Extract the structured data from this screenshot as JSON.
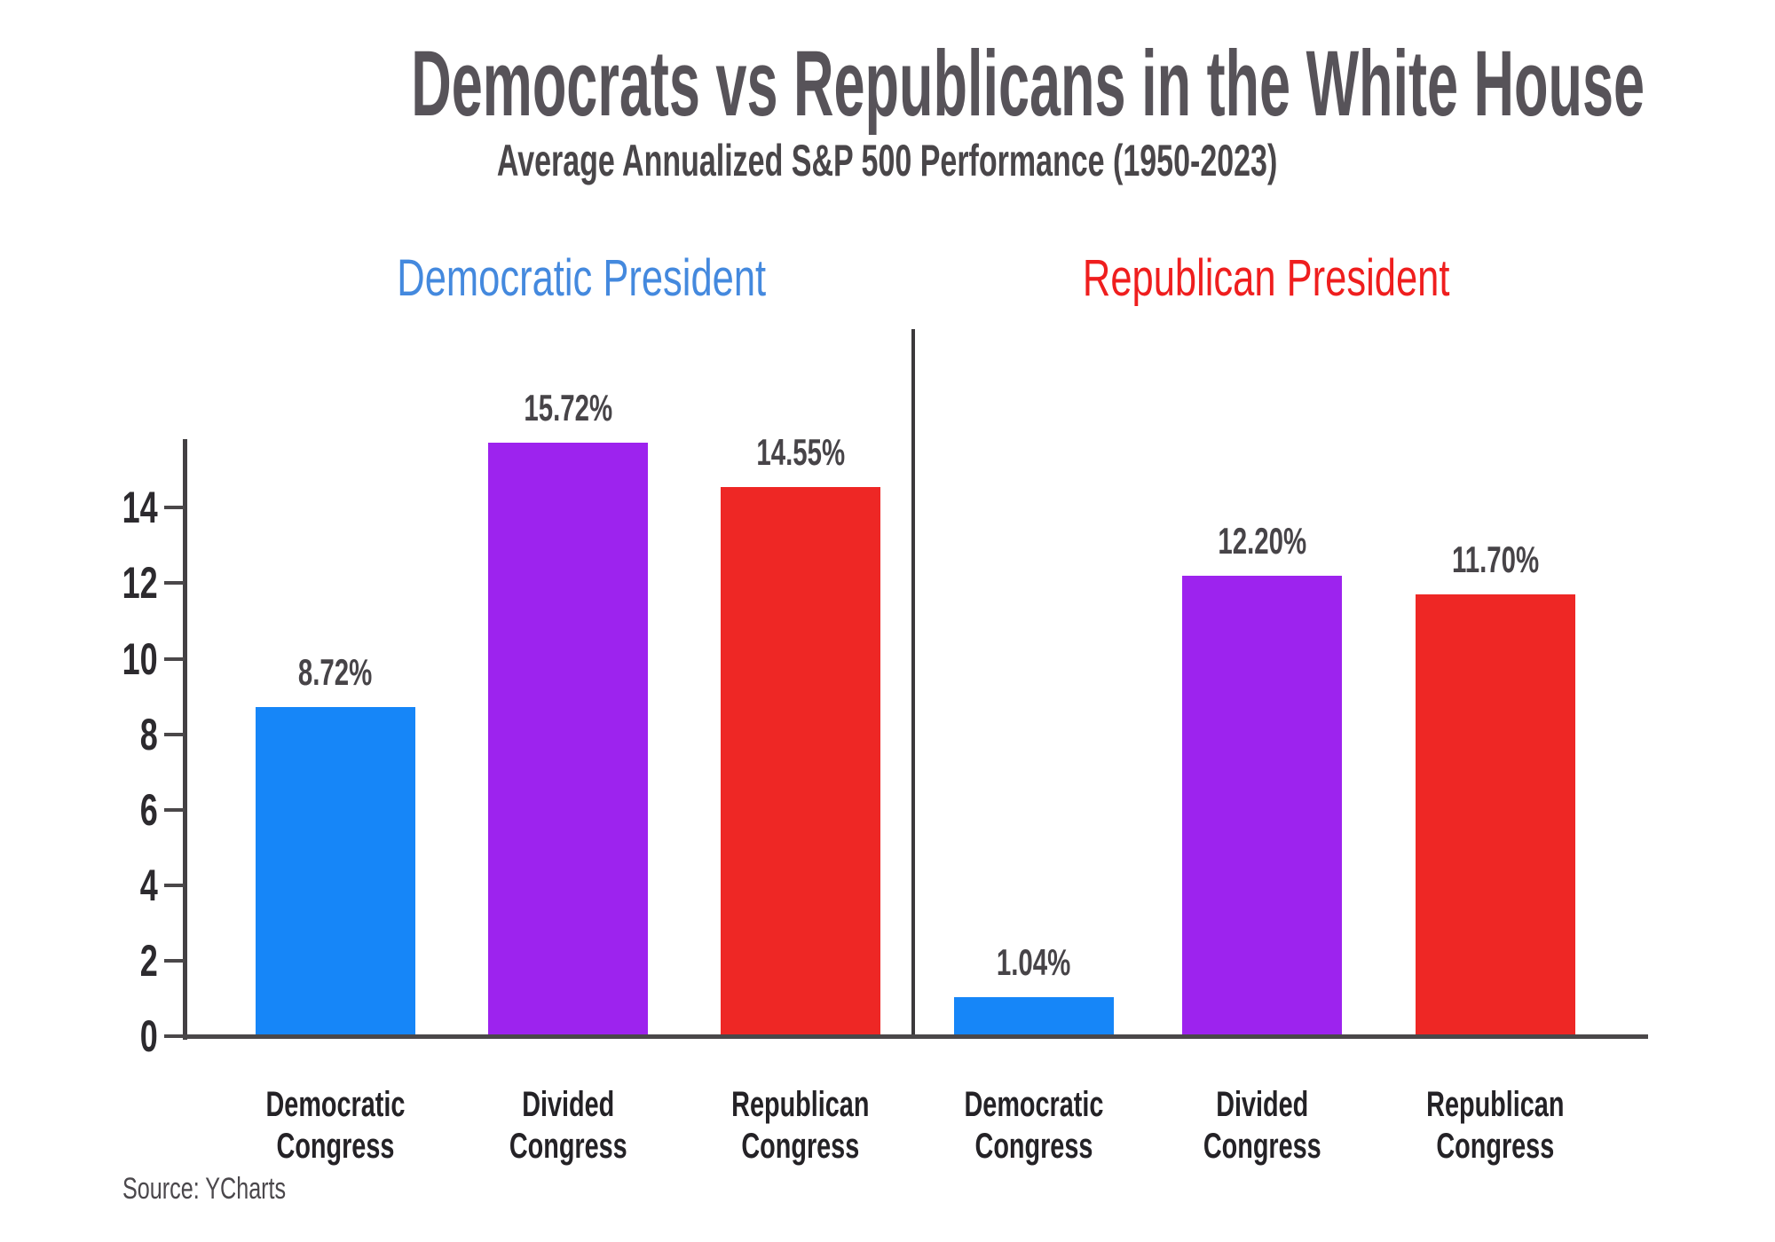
{
  "chart_data": {
    "type": "bar",
    "title": "Democrats vs Republicans in the White House",
    "subtitle": "Average Annualized S&P 500 Performance (1950-2023)",
    "source": "Source: YCharts",
    "unit": "%",
    "ylim": [
      0,
      16
    ],
    "yticks": [
      0,
      2,
      4,
      6,
      8,
      10,
      12,
      14
    ],
    "grid": false,
    "legend_position": "none",
    "categories": [
      "Democratic Congress",
      "Divided Congress",
      "Republican Congress"
    ],
    "groups": [
      {
        "label": "Democratic President",
        "header_color": "#4489DE",
        "bars": [
          {
            "category": "Democratic Congress",
            "value": 8.72,
            "label": "8.72%",
            "color": "#1686F8"
          },
          {
            "category": "Divided Congress",
            "value": 15.72,
            "label": "15.72%",
            "color": "#9D23EE"
          },
          {
            "category": "Republican Congress",
            "value": 14.55,
            "label": "14.55%",
            "color": "#EE2725"
          }
        ]
      },
      {
        "label": "Republican President",
        "header_color": "#EF1E1E",
        "bars": [
          {
            "category": "Democratic Congress",
            "value": 1.04,
            "label": "1.04%",
            "color": "#1686F8"
          },
          {
            "category": "Divided Congress",
            "value": 12.2,
            "label": "12.20%",
            "color": "#9D23EE"
          },
          {
            "category": "Republican Congress",
            "value": 11.7,
            "label": "11.70%",
            "color": "#EE2725"
          }
        ]
      }
    ],
    "colors": {
      "title": "#575359",
      "subtitle": "#494649",
      "axis_line": "#434043",
      "tick_label": "#2c2a2e",
      "value_label": "#474448",
      "category_label": "#242226",
      "source": "#4b484c",
      "blue_bar": "#1686F8",
      "purple_bar": "#9D23EE",
      "red_bar": "#EE2725"
    }
  }
}
